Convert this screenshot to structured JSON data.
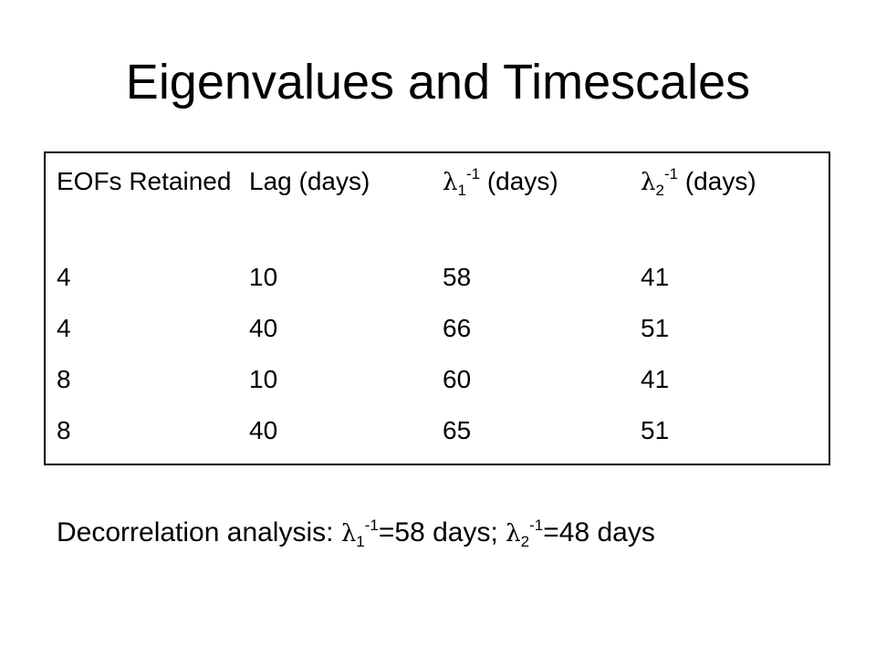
{
  "title": "Eigenvalues and Timescales",
  "table": {
    "headers": {
      "eofs": "EOFs Retained",
      "lag": "Lag (days)",
      "lambda1": {
        "symbol": "λ",
        "subscript": "1",
        "superscript": "-1",
        "unit": "(days)"
      },
      "lambda2": {
        "symbol": "λ",
        "subscript": "2",
        "superscript": "-1",
        "unit": "(days)"
      }
    },
    "rows": [
      [
        "4",
        "10",
        "58",
        "41"
      ],
      [
        "4",
        "40",
        "66",
        "51"
      ],
      [
        "8",
        "10",
        "60",
        "41"
      ],
      [
        "8",
        "40",
        "65",
        "51"
      ]
    ]
  },
  "note": {
    "prefix": "Decorrelation analysis: ",
    "term1": {
      "symbol": "λ",
      "subscript": "1",
      "superscript": "-1",
      "value": "=58 days; "
    },
    "term2": {
      "symbol": "λ",
      "subscript": "2",
      "superscript": "-1",
      "value": "=48 days"
    }
  }
}
